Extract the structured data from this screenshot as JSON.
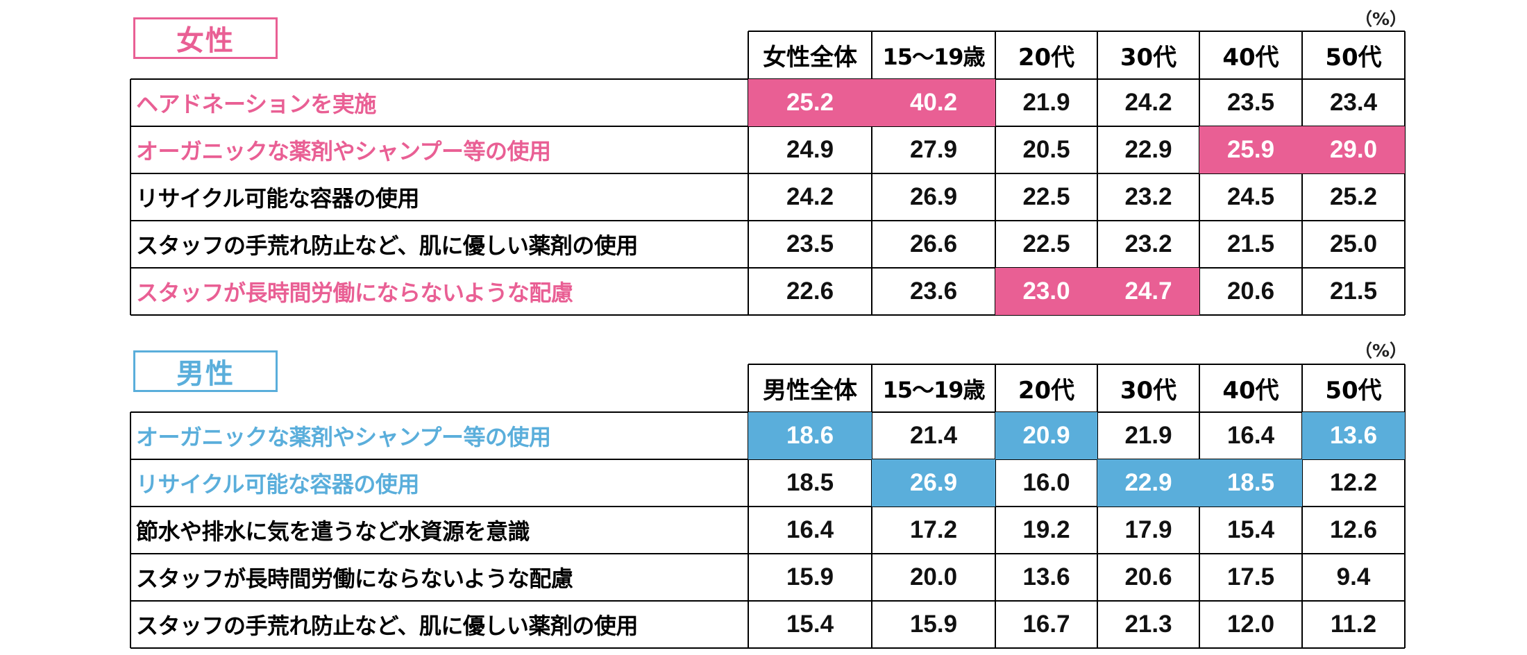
{
  "colors": {
    "female_accent": "#e95f94",
    "male_accent": "#5aaedb",
    "grid": "#000000",
    "normal_text": "#000000"
  },
  "chart_data": [
    {
      "type": "table",
      "title": "女性",
      "unit": "（%）",
      "columns": [
        "女性全体",
        "15～19歳",
        "20代",
        "30代",
        "40代",
        "50代"
      ],
      "rows": [
        {
          "label": "ヘアドネーションを実施",
          "accent": true,
          "values": [
            "25.2",
            "40.2",
            "21.9",
            "24.2",
            "23.5",
            "23.4"
          ],
          "highlight": [
            true,
            true,
            false,
            false,
            false,
            false
          ]
        },
        {
          "label": "オーガニックな薬剤やシャンプー等の使用",
          "accent": true,
          "values": [
            "24.9",
            "27.9",
            "20.5",
            "22.9",
            "25.9",
            "29.0"
          ],
          "highlight": [
            false,
            false,
            false,
            false,
            true,
            true
          ]
        },
        {
          "label": "リサイクル可能な容器の使用",
          "accent": false,
          "values": [
            "24.2",
            "26.9",
            "22.5",
            "23.2",
            "24.5",
            "25.2"
          ],
          "highlight": [
            false,
            false,
            false,
            false,
            false,
            false
          ]
        },
        {
          "label": "スタッフの手荒れ防止など、肌に優しい薬剤の使用",
          "accent": false,
          "values": [
            "23.5",
            "26.6",
            "22.5",
            "23.2",
            "21.5",
            "25.0"
          ],
          "highlight": [
            false,
            false,
            false,
            false,
            false,
            false
          ]
        },
        {
          "label": "スタッフが長時間労働にならないような配慮",
          "accent": true,
          "values": [
            "22.6",
            "23.6",
            "23.0",
            "24.7",
            "20.6",
            "21.5"
          ],
          "highlight": [
            false,
            false,
            true,
            true,
            false,
            false
          ]
        }
      ]
    },
    {
      "type": "table",
      "title": "男性",
      "unit": "（%）",
      "columns": [
        "男性全体",
        "15～19歳",
        "20代",
        "30代",
        "40代",
        "50代"
      ],
      "rows": [
        {
          "label": "オーガニックな薬剤やシャンプー等の使用",
          "accent": true,
          "values": [
            "18.6",
            "21.4",
            "20.9",
            "21.9",
            "16.4",
            "13.6"
          ],
          "highlight": [
            true,
            false,
            true,
            false,
            false,
            true
          ]
        },
        {
          "label": "リサイクル可能な容器の使用",
          "accent": true,
          "values": [
            "18.5",
            "26.9",
            "16.0",
            "22.9",
            "18.5",
            "12.2"
          ],
          "highlight": [
            false,
            true,
            false,
            true,
            true,
            false
          ]
        },
        {
          "label": "節水や排水に気を遣うなど水資源を意識",
          "accent": false,
          "values": [
            "16.4",
            "17.2",
            "19.2",
            "17.9",
            "15.4",
            "12.6"
          ],
          "highlight": [
            false,
            false,
            false,
            false,
            false,
            false
          ]
        },
        {
          "label": "スタッフが長時間労働にならないような配慮",
          "accent": false,
          "values": [
            "15.9",
            "20.0",
            "13.6",
            "20.6",
            "17.5",
            "9.4"
          ],
          "highlight": [
            false,
            false,
            false,
            false,
            false,
            false
          ]
        },
        {
          "label": "スタッフの手荒れ防止など、肌に優しい薬剤の使用",
          "accent": false,
          "values": [
            "15.4",
            "15.9",
            "16.7",
            "21.3",
            "12.0",
            "11.2"
          ],
          "highlight": [
            false,
            false,
            false,
            false,
            false,
            false
          ]
        }
      ]
    }
  ]
}
